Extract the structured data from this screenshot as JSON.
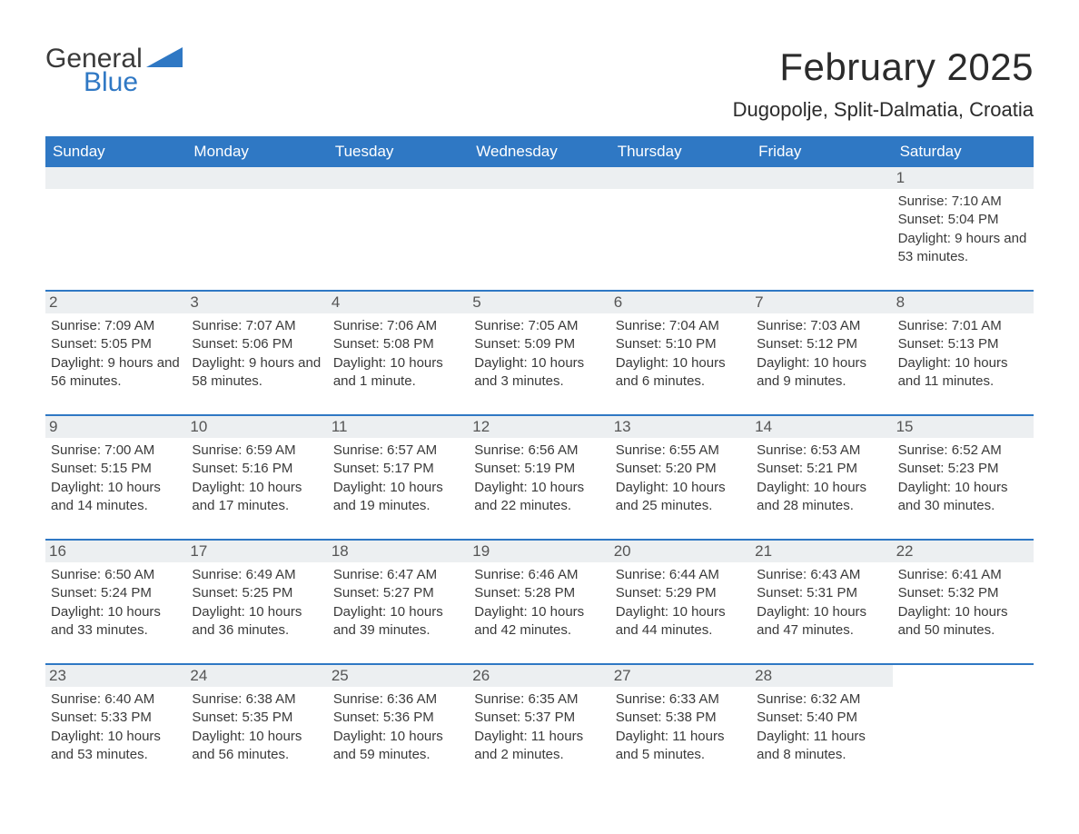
{
  "logo": {
    "general": "General",
    "blue": "Blue"
  },
  "title": "February 2025",
  "location": "Dugopolje, Split-Dalmatia, Croatia",
  "colors": {
    "brand_blue": "#2f78c4",
    "header_bg": "#2f78c4",
    "header_text": "#ffffff",
    "daynum_bg": "#eceff1",
    "text": "#3a3a3a",
    "separator": "#2f78c4",
    "background": "#ffffff"
  },
  "typography": {
    "title_fontsize": 42,
    "location_fontsize": 22,
    "weekday_fontsize": 17,
    "daynum_fontsize": 17,
    "body_fontsize": 15,
    "logo_fontsize": 30
  },
  "layout": {
    "columns": 7,
    "rows": 5
  },
  "weekdays": [
    "Sunday",
    "Monday",
    "Tuesday",
    "Wednesday",
    "Thursday",
    "Friday",
    "Saturday"
  ],
  "weeks": [
    [
      {
        "day": null
      },
      {
        "day": null
      },
      {
        "day": null
      },
      {
        "day": null
      },
      {
        "day": null
      },
      {
        "day": null
      },
      {
        "day": "1",
        "sunrise": "Sunrise: 7:10 AM",
        "sunset": "Sunset: 5:04 PM",
        "daylight": "Daylight: 9 hours and 53 minutes."
      }
    ],
    [
      {
        "day": "2",
        "sunrise": "Sunrise: 7:09 AM",
        "sunset": "Sunset: 5:05 PM",
        "daylight": "Daylight: 9 hours and 56 minutes."
      },
      {
        "day": "3",
        "sunrise": "Sunrise: 7:07 AM",
        "sunset": "Sunset: 5:06 PM",
        "daylight": "Daylight: 9 hours and 58 minutes."
      },
      {
        "day": "4",
        "sunrise": "Sunrise: 7:06 AM",
        "sunset": "Sunset: 5:08 PM",
        "daylight": "Daylight: 10 hours and 1 minute."
      },
      {
        "day": "5",
        "sunrise": "Sunrise: 7:05 AM",
        "sunset": "Sunset: 5:09 PM",
        "daylight": "Daylight: 10 hours and 3 minutes."
      },
      {
        "day": "6",
        "sunrise": "Sunrise: 7:04 AM",
        "sunset": "Sunset: 5:10 PM",
        "daylight": "Daylight: 10 hours and 6 minutes."
      },
      {
        "day": "7",
        "sunrise": "Sunrise: 7:03 AM",
        "sunset": "Sunset: 5:12 PM",
        "daylight": "Daylight: 10 hours and 9 minutes."
      },
      {
        "day": "8",
        "sunrise": "Sunrise: 7:01 AM",
        "sunset": "Sunset: 5:13 PM",
        "daylight": "Daylight: 10 hours and 11 minutes."
      }
    ],
    [
      {
        "day": "9",
        "sunrise": "Sunrise: 7:00 AM",
        "sunset": "Sunset: 5:15 PM",
        "daylight": "Daylight: 10 hours and 14 minutes."
      },
      {
        "day": "10",
        "sunrise": "Sunrise: 6:59 AM",
        "sunset": "Sunset: 5:16 PM",
        "daylight": "Daylight: 10 hours and 17 minutes."
      },
      {
        "day": "11",
        "sunrise": "Sunrise: 6:57 AM",
        "sunset": "Sunset: 5:17 PM",
        "daylight": "Daylight: 10 hours and 19 minutes."
      },
      {
        "day": "12",
        "sunrise": "Sunrise: 6:56 AM",
        "sunset": "Sunset: 5:19 PM",
        "daylight": "Daylight: 10 hours and 22 minutes."
      },
      {
        "day": "13",
        "sunrise": "Sunrise: 6:55 AM",
        "sunset": "Sunset: 5:20 PM",
        "daylight": "Daylight: 10 hours and 25 minutes."
      },
      {
        "day": "14",
        "sunrise": "Sunrise: 6:53 AM",
        "sunset": "Sunset: 5:21 PM",
        "daylight": "Daylight: 10 hours and 28 minutes."
      },
      {
        "day": "15",
        "sunrise": "Sunrise: 6:52 AM",
        "sunset": "Sunset: 5:23 PM",
        "daylight": "Daylight: 10 hours and 30 minutes."
      }
    ],
    [
      {
        "day": "16",
        "sunrise": "Sunrise: 6:50 AM",
        "sunset": "Sunset: 5:24 PM",
        "daylight": "Daylight: 10 hours and 33 minutes."
      },
      {
        "day": "17",
        "sunrise": "Sunrise: 6:49 AM",
        "sunset": "Sunset: 5:25 PM",
        "daylight": "Daylight: 10 hours and 36 minutes."
      },
      {
        "day": "18",
        "sunrise": "Sunrise: 6:47 AM",
        "sunset": "Sunset: 5:27 PM",
        "daylight": "Daylight: 10 hours and 39 minutes."
      },
      {
        "day": "19",
        "sunrise": "Sunrise: 6:46 AM",
        "sunset": "Sunset: 5:28 PM",
        "daylight": "Daylight: 10 hours and 42 minutes."
      },
      {
        "day": "20",
        "sunrise": "Sunrise: 6:44 AM",
        "sunset": "Sunset: 5:29 PM",
        "daylight": "Daylight: 10 hours and 44 minutes."
      },
      {
        "day": "21",
        "sunrise": "Sunrise: 6:43 AM",
        "sunset": "Sunset: 5:31 PM",
        "daylight": "Daylight: 10 hours and 47 minutes."
      },
      {
        "day": "22",
        "sunrise": "Sunrise: 6:41 AM",
        "sunset": "Sunset: 5:32 PM",
        "daylight": "Daylight: 10 hours and 50 minutes."
      }
    ],
    [
      {
        "day": "23",
        "sunrise": "Sunrise: 6:40 AM",
        "sunset": "Sunset: 5:33 PM",
        "daylight": "Daylight: 10 hours and 53 minutes."
      },
      {
        "day": "24",
        "sunrise": "Sunrise: 6:38 AM",
        "sunset": "Sunset: 5:35 PM",
        "daylight": "Daylight: 10 hours and 56 minutes."
      },
      {
        "day": "25",
        "sunrise": "Sunrise: 6:36 AM",
        "sunset": "Sunset: 5:36 PM",
        "daylight": "Daylight: 10 hours and 59 minutes."
      },
      {
        "day": "26",
        "sunrise": "Sunrise: 6:35 AM",
        "sunset": "Sunset: 5:37 PM",
        "daylight": "Daylight: 11 hours and 2 minutes."
      },
      {
        "day": "27",
        "sunrise": "Sunrise: 6:33 AM",
        "sunset": "Sunset: 5:38 PM",
        "daylight": "Daylight: 11 hours and 5 minutes."
      },
      {
        "day": "28",
        "sunrise": "Sunrise: 6:32 AM",
        "sunset": "Sunset: 5:40 PM",
        "daylight": "Daylight: 11 hours and 8 minutes."
      },
      {
        "day": null
      }
    ]
  ]
}
